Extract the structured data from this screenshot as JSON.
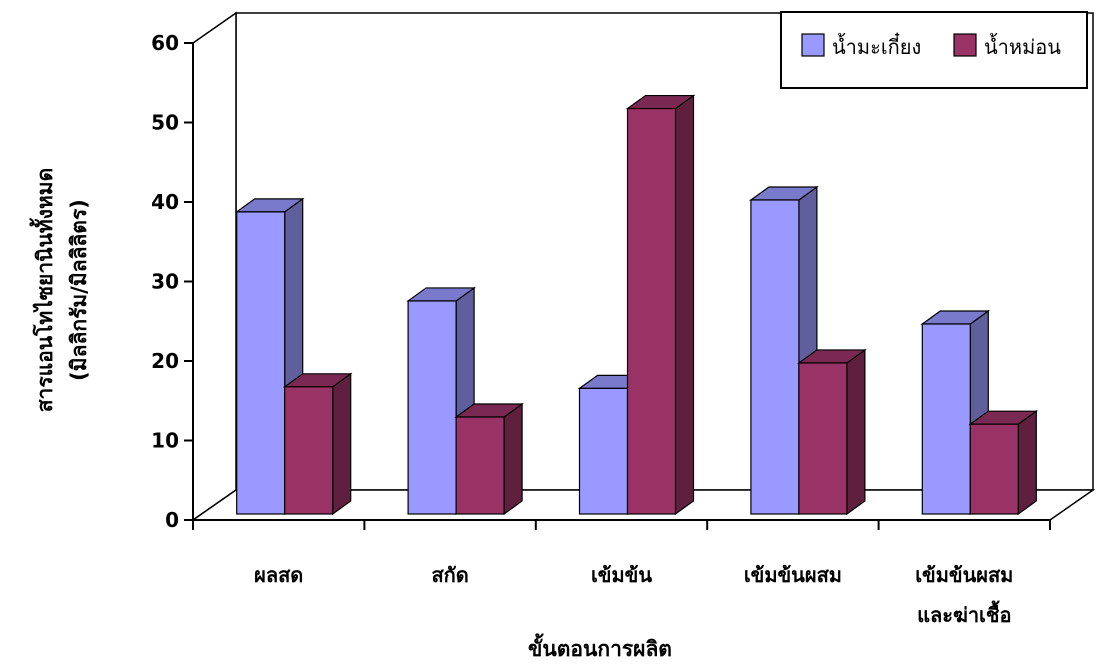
{
  "chart_data": {
    "type": "bar",
    "categories": [
      [
        "ผลสด"
      ],
      [
        "สกัด"
      ],
      [
        "เข้มข้น"
      ],
      [
        "เข้มข้นผสม"
      ],
      [
        "เข้มข้นผสม",
        "และฆ่าเชื้อ"
      ]
    ],
    "series": [
      {
        "name": "น้ำมะเกี๋ยง",
        "values": [
          38,
          26.8,
          15.8,
          39.5,
          23.9
        ],
        "color": "#9999ff"
      },
      {
        "name": "น้ำหม่อน",
        "values": [
          16,
          12.2,
          51,
          19,
          11.3
        ],
        "color": "#993366"
      }
    ],
    "xlabel": "ขั้นตอนการผลิต",
    "ylabel_lines": [
      "สารแอนโทไซยานินทั้งหมด",
      "(มิลลิกรัม/มิลลิลิตร)"
    ],
    "ylim": [
      0,
      60
    ],
    "yticks": [
      0,
      10,
      20,
      30,
      40,
      50,
      60
    ],
    "grid": false,
    "legend_position": "top-right"
  }
}
